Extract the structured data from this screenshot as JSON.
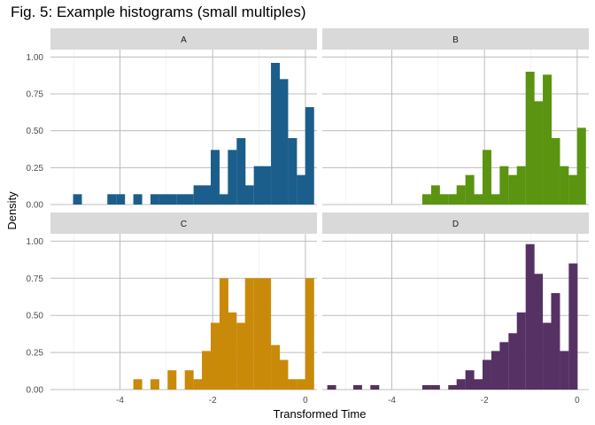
{
  "title": "Fig. 5: Example histograms (small multiples)",
  "chart_data": {
    "type": "bar",
    "title": "Fig. 5: Example histograms (small multiples)",
    "xlabel": "Transformed Time",
    "ylabel": "Density",
    "xlim": [
      -5.5,
      0.25
    ],
    "ylim": [
      0,
      1.0
    ],
    "x_ticks": [
      -4,
      -2,
      0
    ],
    "x_tick_labels": [
      "-4",
      "-2",
      "0"
    ],
    "y_ticks": [
      0,
      0.25,
      0.5,
      0.75,
      1.0
    ],
    "y_tick_labels": [
      "0.00",
      "0.25",
      "0.50",
      "0.75",
      "1.00"
    ],
    "grid": true,
    "bin_width": 0.185,
    "panels": [
      {
        "label": "A",
        "color": "#1b5e8c",
        "bins": [
          [
            -4.92,
            0.07
          ],
          [
            -4.18,
            0.07
          ],
          [
            -3.99,
            0.07
          ],
          [
            -3.62,
            0.07
          ],
          [
            -3.25,
            0.07
          ],
          [
            -3.06,
            0.07
          ],
          [
            -2.88,
            0.07
          ],
          [
            -2.69,
            0.07
          ],
          [
            -2.51,
            0.07
          ],
          [
            -2.32,
            0.13
          ],
          [
            -2.14,
            0.13
          ],
          [
            -1.95,
            0.37
          ],
          [
            -1.76,
            0.07
          ],
          [
            -1.58,
            0.37
          ],
          [
            -1.39,
            0.45
          ],
          [
            -1.21,
            0.13
          ],
          [
            -1.02,
            0.26
          ],
          [
            -0.84,
            0.26
          ],
          [
            -0.65,
            0.96
          ],
          [
            -0.47,
            0.85
          ],
          [
            -0.28,
            0.45
          ],
          [
            -0.09,
            0.2
          ],
          [
            0.09,
            0.66
          ]
        ]
      },
      {
        "label": "B",
        "color": "#5a9410",
        "bins": [
          [
            -3.25,
            0.07
          ],
          [
            -3.06,
            0.13
          ],
          [
            -2.88,
            0.07
          ],
          [
            -2.69,
            0.07
          ],
          [
            -2.51,
            0.13
          ],
          [
            -2.32,
            0.2
          ],
          [
            -2.14,
            0.07
          ],
          [
            -1.95,
            0.37
          ],
          [
            -1.76,
            0.07
          ],
          [
            -1.58,
            0.26
          ],
          [
            -1.39,
            0.2
          ],
          [
            -1.21,
            0.26
          ],
          [
            -1.02,
            0.9
          ],
          [
            -0.84,
            0.7
          ],
          [
            -0.65,
            0.88
          ],
          [
            -0.47,
            0.45
          ],
          [
            -0.28,
            0.26
          ],
          [
            -0.09,
            0.2
          ],
          [
            0.09,
            0.52
          ]
        ]
      },
      {
        "label": "C",
        "color": "#c98a0a",
        "bins": [
          [
            -3.62,
            0.07
          ],
          [
            -3.25,
            0.07
          ],
          [
            -2.88,
            0.13
          ],
          [
            -2.51,
            0.13
          ],
          [
            -2.32,
            0.07
          ],
          [
            -2.14,
            0.26
          ],
          [
            -1.95,
            0.45
          ],
          [
            -1.76,
            0.75
          ],
          [
            -1.58,
            0.52
          ],
          [
            -1.39,
            0.45
          ],
          [
            -1.21,
            0.75
          ],
          [
            -1.02,
            0.75
          ],
          [
            -0.84,
            0.75
          ],
          [
            -0.65,
            0.3
          ],
          [
            -0.47,
            0.2
          ],
          [
            -0.28,
            0.07
          ],
          [
            -0.09,
            0.07
          ],
          [
            0.09,
            0.75
          ]
        ]
      },
      {
        "label": "D",
        "color": "#553263",
        "bins": [
          [
            -5.3,
            0.03
          ],
          [
            -4.74,
            0.03
          ],
          [
            -4.37,
            0.03
          ],
          [
            -3.25,
            0.03
          ],
          [
            -3.06,
            0.03
          ],
          [
            -2.69,
            0.03
          ],
          [
            -2.51,
            0.07
          ],
          [
            -2.32,
            0.13
          ],
          [
            -2.14,
            0.07
          ],
          [
            -1.95,
            0.2
          ],
          [
            -1.76,
            0.26
          ],
          [
            -1.58,
            0.32
          ],
          [
            -1.39,
            0.38
          ],
          [
            -1.21,
            0.52
          ],
          [
            -1.02,
            0.98
          ],
          [
            -0.84,
            0.78
          ],
          [
            -0.65,
            0.45
          ],
          [
            -0.47,
            0.65
          ],
          [
            -0.28,
            0.26
          ],
          [
            -0.09,
            0.85
          ]
        ]
      }
    ]
  }
}
